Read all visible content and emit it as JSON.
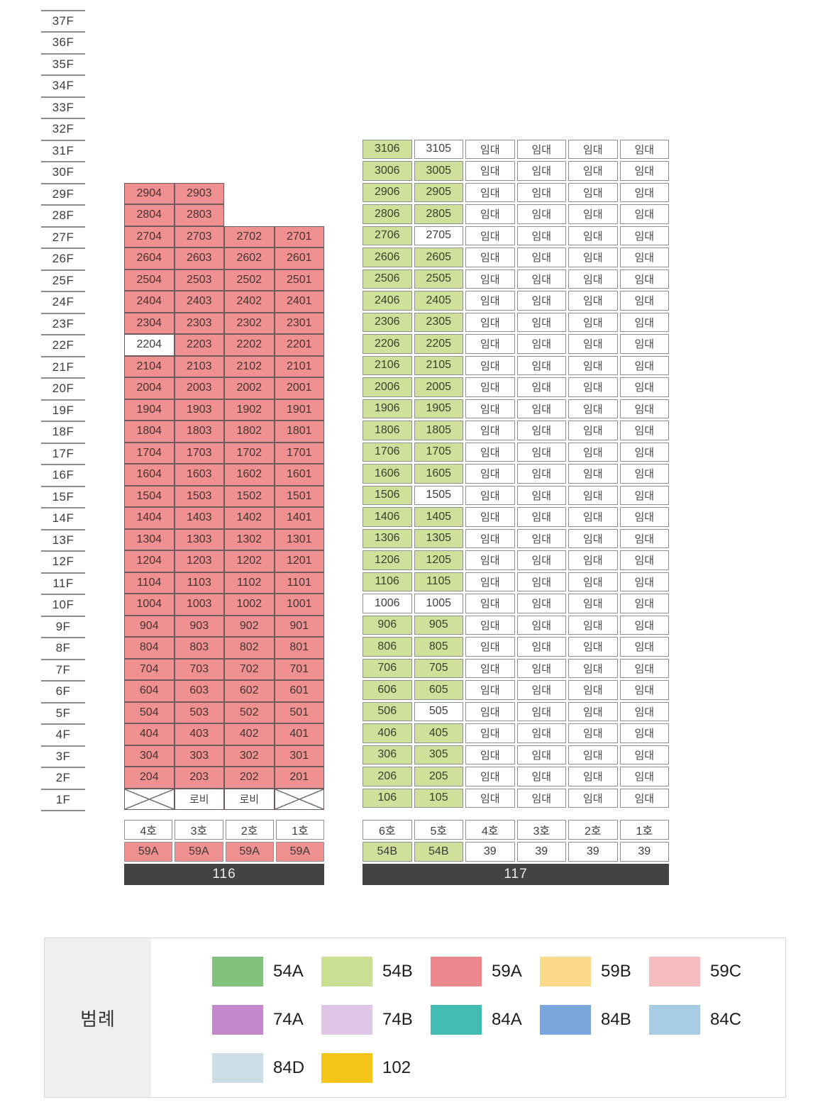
{
  "floor_axis": {
    "labels": [
      "37F",
      "36F",
      "35F",
      "34F",
      "33F",
      "32F",
      "31F",
      "30F",
      "29F",
      "28F",
      "27F",
      "26F",
      "25F",
      "24F",
      "23F",
      "22F",
      "21F",
      "20F",
      "19F",
      "18F",
      "17F",
      "16F",
      "15F",
      "14F",
      "13F",
      "12F",
      "11F",
      "10F",
      "9F",
      "8F",
      "7F",
      "6F",
      "5F",
      "4F",
      "3F",
      "2F",
      "1F"
    ]
  },
  "colors": {
    "59A": "#f09091",
    "54B": "#cfe09b",
    "bar": "#454243"
  },
  "buildings": [
    {
      "name": "116",
      "lease_columns": 0,
      "lease_label": "임대",
      "rows": [
        {
          "f": "29F",
          "u": [
            "2904",
            "2903",
            "",
            ""
          ],
          "s": [
            "59A",
            "59A",
            "empty",
            "empty"
          ]
        },
        {
          "f": "28F",
          "u": [
            "2804",
            "2803",
            "",
            ""
          ],
          "s": [
            "59A",
            "59A",
            "empty",
            "empty"
          ]
        },
        {
          "f": "27F",
          "u": [
            "2704",
            "2703",
            "2702",
            "2701"
          ],
          "s": [
            "59A",
            "59A",
            "59A",
            "59A"
          ]
        },
        {
          "f": "26F",
          "u": [
            "2604",
            "2603",
            "2602",
            "2601"
          ],
          "s": [
            "59A",
            "59A",
            "59A",
            "59A"
          ]
        },
        {
          "f": "25F",
          "u": [
            "2504",
            "2503",
            "2502",
            "2501"
          ],
          "s": [
            "59A",
            "59A",
            "59A",
            "59A"
          ]
        },
        {
          "f": "24F",
          "u": [
            "2404",
            "2403",
            "2402",
            "2401"
          ],
          "s": [
            "59A",
            "59A",
            "59A",
            "59A"
          ]
        },
        {
          "f": "23F",
          "u": [
            "2304",
            "2303",
            "2302",
            "2301"
          ],
          "s": [
            "59A",
            "59A",
            "59A",
            "59A"
          ]
        },
        {
          "f": "22F",
          "u": [
            "2204",
            "2203",
            "2202",
            "2201"
          ],
          "s": [
            "none",
            "59A",
            "59A",
            "59A"
          ]
        },
        {
          "f": "21F",
          "u": [
            "2104",
            "2103",
            "2102",
            "2101"
          ],
          "s": [
            "59A",
            "59A",
            "59A",
            "59A"
          ]
        },
        {
          "f": "20F",
          "u": [
            "2004",
            "2003",
            "2002",
            "2001"
          ],
          "s": [
            "59A",
            "59A",
            "59A",
            "59A"
          ]
        },
        {
          "f": "19F",
          "u": [
            "1904",
            "1903",
            "1902",
            "1901"
          ],
          "s": [
            "59A",
            "59A",
            "59A",
            "59A"
          ]
        },
        {
          "f": "18F",
          "u": [
            "1804",
            "1803",
            "1802",
            "1801"
          ],
          "s": [
            "59A",
            "59A",
            "59A",
            "59A"
          ]
        },
        {
          "f": "17F",
          "u": [
            "1704",
            "1703",
            "1702",
            "1701"
          ],
          "s": [
            "59A",
            "59A",
            "59A",
            "59A"
          ]
        },
        {
          "f": "16F",
          "u": [
            "1604",
            "1603",
            "1602",
            "1601"
          ],
          "s": [
            "59A",
            "59A",
            "59A",
            "59A"
          ]
        },
        {
          "f": "15F",
          "u": [
            "1504",
            "1503",
            "1502",
            "1501"
          ],
          "s": [
            "59A",
            "59A",
            "59A",
            "59A"
          ]
        },
        {
          "f": "14F",
          "u": [
            "1404",
            "1403",
            "1402",
            "1401"
          ],
          "s": [
            "59A",
            "59A",
            "59A",
            "59A"
          ]
        },
        {
          "f": "13F",
          "u": [
            "1304",
            "1303",
            "1302",
            "1301"
          ],
          "s": [
            "59A",
            "59A",
            "59A",
            "59A"
          ]
        },
        {
          "f": "12F",
          "u": [
            "1204",
            "1203",
            "1202",
            "1201"
          ],
          "s": [
            "59A",
            "59A",
            "59A",
            "59A"
          ]
        },
        {
          "f": "11F",
          "u": [
            "1104",
            "1103",
            "1102",
            "1101"
          ],
          "s": [
            "59A",
            "59A",
            "59A",
            "59A"
          ]
        },
        {
          "f": "10F",
          "u": [
            "1004",
            "1003",
            "1002",
            "1001"
          ],
          "s": [
            "59A",
            "59A",
            "59A",
            "59A"
          ]
        },
        {
          "f": "9F",
          "u": [
            "904",
            "903",
            "902",
            "901"
          ],
          "s": [
            "59A",
            "59A",
            "59A",
            "59A"
          ]
        },
        {
          "f": "8F",
          "u": [
            "804",
            "803",
            "802",
            "801"
          ],
          "s": [
            "59A",
            "59A",
            "59A",
            "59A"
          ]
        },
        {
          "f": "7F",
          "u": [
            "704",
            "703",
            "702",
            "701"
          ],
          "s": [
            "59A",
            "59A",
            "59A",
            "59A"
          ]
        },
        {
          "f": "6F",
          "u": [
            "604",
            "603",
            "602",
            "601"
          ],
          "s": [
            "59A",
            "59A",
            "59A",
            "59A"
          ]
        },
        {
          "f": "5F",
          "u": [
            "504",
            "503",
            "502",
            "501"
          ],
          "s": [
            "59A",
            "59A",
            "59A",
            "59A"
          ]
        },
        {
          "f": "4F",
          "u": [
            "404",
            "403",
            "402",
            "401"
          ],
          "s": [
            "59A",
            "59A",
            "59A",
            "59A"
          ]
        },
        {
          "f": "3F",
          "u": [
            "304",
            "303",
            "302",
            "301"
          ],
          "s": [
            "59A",
            "59A",
            "59A",
            "59A"
          ]
        },
        {
          "f": "2F",
          "u": [
            "204",
            "203",
            "202",
            "201"
          ],
          "s": [
            "59A",
            "59A",
            "59A",
            "59A"
          ]
        },
        {
          "f": "1F",
          "u": [
            "",
            "로비",
            "로비",
            ""
          ],
          "s": [
            "x",
            "lobby",
            "lobby",
            "x"
          ]
        }
      ],
      "footer": {
        "units": [
          "4호",
          "3호",
          "2호",
          "1호"
        ],
        "types": [
          "59A",
          "59A",
          "59A",
          "59A"
        ],
        "type_colors": [
          "59A",
          "59A",
          "59A",
          "59A"
        ],
        "building_no": "116"
      }
    },
    {
      "name": "117",
      "lease_columns": 4,
      "lease_label": "임대",
      "rows": [
        {
          "f": "31F",
          "u": [
            "3106",
            "3105"
          ],
          "s": [
            "54B",
            "none"
          ]
        },
        {
          "f": "30F",
          "u": [
            "3006",
            "3005"
          ],
          "s": [
            "54B",
            "54B"
          ]
        },
        {
          "f": "29F",
          "u": [
            "2906",
            "2905"
          ],
          "s": [
            "54B",
            "54B"
          ]
        },
        {
          "f": "28F",
          "u": [
            "2806",
            "2805"
          ],
          "s": [
            "54B",
            "54B"
          ]
        },
        {
          "f": "27F",
          "u": [
            "2706",
            "2705"
          ],
          "s": [
            "54B",
            "none"
          ]
        },
        {
          "f": "26F",
          "u": [
            "2606",
            "2605"
          ],
          "s": [
            "54B",
            "54B"
          ]
        },
        {
          "f": "25F",
          "u": [
            "2506",
            "2505"
          ],
          "s": [
            "54B",
            "54B"
          ]
        },
        {
          "f": "24F",
          "u": [
            "2406",
            "2405"
          ],
          "s": [
            "54B",
            "54B"
          ]
        },
        {
          "f": "23F",
          "u": [
            "2306",
            "2305"
          ],
          "s": [
            "54B",
            "54B"
          ]
        },
        {
          "f": "22F",
          "u": [
            "2206",
            "2205"
          ],
          "s": [
            "54B",
            "54B"
          ]
        },
        {
          "f": "21F",
          "u": [
            "2106",
            "2105"
          ],
          "s": [
            "54B",
            "54B"
          ]
        },
        {
          "f": "20F",
          "u": [
            "2006",
            "2005"
          ],
          "s": [
            "54B",
            "54B"
          ]
        },
        {
          "f": "19F",
          "u": [
            "1906",
            "1905"
          ],
          "s": [
            "54B",
            "54B"
          ]
        },
        {
          "f": "18F",
          "u": [
            "1806",
            "1805"
          ],
          "s": [
            "54B",
            "54B"
          ]
        },
        {
          "f": "17F",
          "u": [
            "1706",
            "1705"
          ],
          "s": [
            "54B",
            "54B"
          ]
        },
        {
          "f": "16F",
          "u": [
            "1606",
            "1605"
          ],
          "s": [
            "54B",
            "54B"
          ]
        },
        {
          "f": "15F",
          "u": [
            "1506",
            "1505"
          ],
          "s": [
            "54B",
            "none"
          ]
        },
        {
          "f": "14F",
          "u": [
            "1406",
            "1405"
          ],
          "s": [
            "54B",
            "54B"
          ]
        },
        {
          "f": "13F",
          "u": [
            "1306",
            "1305"
          ],
          "s": [
            "54B",
            "54B"
          ]
        },
        {
          "f": "12F",
          "u": [
            "1206",
            "1205"
          ],
          "s": [
            "54B",
            "54B"
          ]
        },
        {
          "f": "11F",
          "u": [
            "1106",
            "1105"
          ],
          "s": [
            "54B",
            "54B"
          ]
        },
        {
          "f": "10F",
          "u": [
            "1006",
            "1005"
          ],
          "s": [
            "none",
            "none"
          ]
        },
        {
          "f": "9F",
          "u": [
            "906",
            "905"
          ],
          "s": [
            "54B",
            "54B"
          ]
        },
        {
          "f": "8F",
          "u": [
            "806",
            "805"
          ],
          "s": [
            "54B",
            "54B"
          ]
        },
        {
          "f": "7F",
          "u": [
            "706",
            "705"
          ],
          "s": [
            "54B",
            "54B"
          ]
        },
        {
          "f": "6F",
          "u": [
            "606",
            "605"
          ],
          "s": [
            "54B",
            "54B"
          ]
        },
        {
          "f": "5F",
          "u": [
            "506",
            "505"
          ],
          "s": [
            "54B",
            "none"
          ]
        },
        {
          "f": "4F",
          "u": [
            "406",
            "405"
          ],
          "s": [
            "54B",
            "54B"
          ]
        },
        {
          "f": "3F",
          "u": [
            "306",
            "305"
          ],
          "s": [
            "54B",
            "54B"
          ]
        },
        {
          "f": "2F",
          "u": [
            "206",
            "205"
          ],
          "s": [
            "54B",
            "54B"
          ]
        },
        {
          "f": "1F",
          "u": [
            "106",
            "105"
          ],
          "s": [
            "54B",
            "54B"
          ]
        }
      ],
      "footer": {
        "units": [
          "6호",
          "5호",
          "4호",
          "3호",
          "2호",
          "1호"
        ],
        "types": [
          "54B",
          "54B",
          "39",
          "39",
          "39",
          "39"
        ],
        "type_colors": [
          "54B",
          "54B",
          "none",
          "none",
          "none",
          "none"
        ],
        "building_no": "117"
      }
    }
  ],
  "legend": {
    "label": "범례",
    "columns_per_row": 5,
    "items": [
      {
        "code": "54A",
        "color": "#82c17e"
      },
      {
        "code": "54B",
        "color": "#cbdf92"
      },
      {
        "code": "59A",
        "color": "#ec898e"
      },
      {
        "code": "59B",
        "color": "#fbd98d"
      },
      {
        "code": "59C",
        "color": "#f4bcbf"
      },
      {
        "code": "74A",
        "color": "#c388c9"
      },
      {
        "code": "74B",
        "color": "#dfc5e6"
      },
      {
        "code": "84A",
        "color": "#41bcb3"
      },
      {
        "code": "84B",
        "color": "#78a6dd"
      },
      {
        "code": "84C",
        "color": "#a8cbe4"
      },
      {
        "code": "84D",
        "color": "#ccdde5"
      },
      {
        "code": "102",
        "color": "#f3c517"
      }
    ]
  }
}
